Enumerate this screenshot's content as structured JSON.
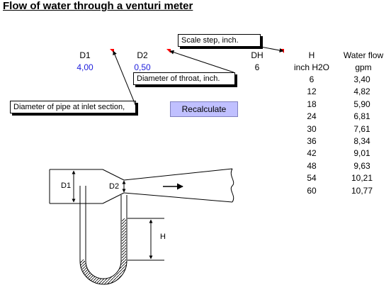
{
  "title": "Flow of water through a venturi meter",
  "inputs": {
    "d1": {
      "label": "D1",
      "value": "4,00"
    },
    "d2": {
      "label": "D2",
      "value": "0,50"
    },
    "dh": {
      "label": "DH",
      "value": "6"
    }
  },
  "comments": {
    "scale_step": "Scale step, inch.",
    "throat_diameter": "Diameter of throat, inch.",
    "inlet_diameter": "Diameter of pipe at inlet section,"
  },
  "recalculate_label": "Recalculate",
  "table": {
    "col1_header": "H",
    "col1_unit": "inch H2O",
    "col2_header": "Water flow",
    "col2_unit": "gpm",
    "h_values": [
      "6",
      "12",
      "18",
      "24",
      "30",
      "36",
      "42",
      "48",
      "54",
      "60"
    ],
    "flow_values": [
      "3,40",
      "4,82",
      "5,90",
      "6,81",
      "7,61",
      "8,34",
      "9,01",
      "9,63",
      "10,21",
      "10,77"
    ]
  },
  "diagram": {
    "d1_label": "D1",
    "d2_label": "D2",
    "h_label": "H"
  },
  "colors": {
    "value_blue": "#1e1edc",
    "button_fill": "#c0c0ff",
    "comment_marker": "#ff0000"
  }
}
